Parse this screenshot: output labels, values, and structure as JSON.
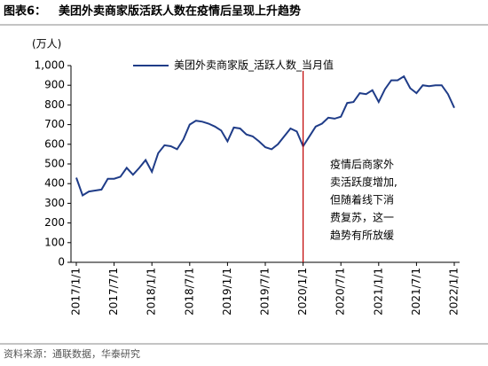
{
  "chart_data": {
    "type": "line",
    "label": "图表6：",
    "title": "美团外卖商家版活跃人数在疫情后呈现上升趋势",
    "unit": "(万人)",
    "source": "资料来源：通联数据，华泰研究",
    "categories": [
      "2017/1/1",
      null,
      null,
      null,
      null,
      null,
      "2017/7/1",
      null,
      null,
      null,
      null,
      null,
      "2018/1/1",
      null,
      null,
      null,
      null,
      null,
      "2018/7/1",
      null,
      null,
      null,
      null,
      null,
      "2019/1/1",
      null,
      null,
      null,
      null,
      null,
      "2019/7/1",
      null,
      null,
      null,
      null,
      null,
      "2020/1/1",
      null,
      null,
      null,
      null,
      null,
      "2020/7/1",
      null,
      null,
      null,
      null,
      null,
      "2021/1/1",
      null,
      null,
      null,
      null,
      null,
      "2021/7/1",
      null,
      null,
      null,
      null,
      null,
      "2022/1/1"
    ],
    "series": [
      {
        "name": "美团外卖商家版_活跃人数_当月值",
        "color": "#1f3c88",
        "values": [
          430,
          340,
          360,
          365,
          370,
          425,
          425,
          435,
          480,
          445,
          480,
          520,
          460,
          555,
          595,
          590,
          575,
          625,
          700,
          720,
          715,
          705,
          690,
          670,
          615,
          685,
          680,
          650,
          640,
          615,
          585,
          575,
          600,
          640,
          680,
          665,
          590,
          640,
          690,
          705,
          735,
          730,
          740,
          810,
          815,
          860,
          855,
          875,
          815,
          880,
          925,
          925,
          945,
          885,
          860,
          900,
          895,
          900,
          900,
          855,
          785
        ]
      }
    ],
    "ylim": [
      0,
      1000
    ],
    "yticks": [
      0,
      100,
      200,
      300,
      400,
      500,
      600,
      700,
      800,
      900,
      {
        "value": 1000,
        "label": "1,000"
      }
    ],
    "annotation": {
      "x": "2020/1/1",
      "color": "#c00000",
      "lines": [
        "疫情后商家外",
        "卖活跃度增加,",
        "但随着线下消",
        "费复苏，这一",
        "趋势有所放缓"
      ]
    }
  }
}
